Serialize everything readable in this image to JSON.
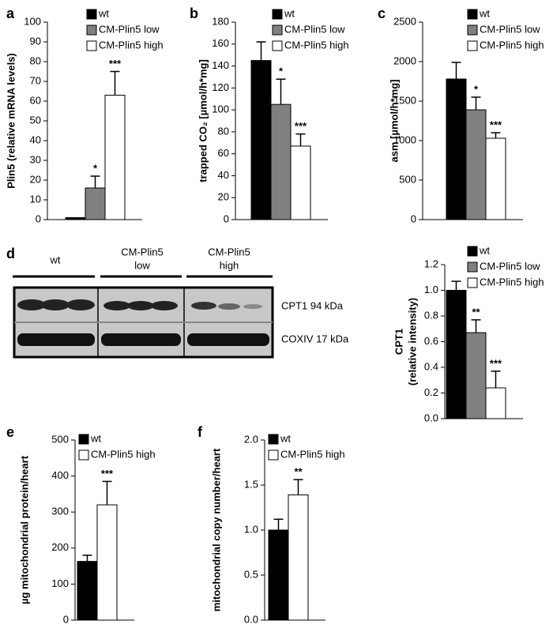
{
  "chart_data": [
    {
      "type": "bar",
      "panel": "a",
      "ylabel": "Plin5 (relative mRNA levels)",
      "ylim": [
        0,
        100
      ],
      "yticks": [
        0,
        10,
        20,
        30,
        40,
        50,
        60,
        70,
        80,
        90,
        100
      ],
      "series": [
        {
          "name": "wt",
          "color": "#000000",
          "values": [
            1
          ],
          "errors": [
            0
          ],
          "sig": [
            null
          ]
        },
        {
          "name": "CM-Plin5 low",
          "color": "#808080",
          "values": [
            16
          ],
          "errors": [
            6
          ],
          "sig": [
            "*"
          ]
        },
        {
          "name": "CM-Plin5 high",
          "color": "#ffffff",
          "values": [
            63
          ],
          "errors": [
            12
          ],
          "sig": [
            "***"
          ]
        }
      ]
    },
    {
      "type": "bar",
      "panel": "b",
      "ylabel": "trapped CO₂ [µmol/h*mg]",
      "ylim": [
        0,
        180
      ],
      "yticks": [
        0,
        20,
        40,
        60,
        80,
        100,
        120,
        140,
        160,
        180
      ],
      "series": [
        {
          "name": "wt",
          "color": "#000000",
          "values": [
            145
          ],
          "errors": [
            17
          ],
          "sig": [
            null
          ]
        },
        {
          "name": "CM-Plin5 low",
          "color": "#808080",
          "values": [
            105
          ],
          "errors": [
            23
          ],
          "sig": [
            "*"
          ]
        },
        {
          "name": "CM-Plin5 high",
          "color": "#ffffff",
          "values": [
            67
          ],
          "errors": [
            11
          ],
          "sig": [
            "***"
          ]
        }
      ]
    },
    {
      "type": "bar",
      "panel": "c",
      "ylabel": "asm [µmol/h*mg]",
      "ylim": [
        0,
        2500
      ],
      "yticks": [
        0,
        500,
        1000,
        1500,
        2000,
        2500
      ],
      "series": [
        {
          "name": "wt",
          "color": "#000000",
          "values": [
            1780
          ],
          "errors": [
            210
          ],
          "sig": [
            null
          ]
        },
        {
          "name": "CM-Plin5 low",
          "color": "#808080",
          "values": [
            1390
          ],
          "errors": [
            160
          ],
          "sig": [
            "*"
          ]
        },
        {
          "name": "CM-Plin5 high",
          "color": "#ffffff",
          "values": [
            1030
          ],
          "errors": [
            70
          ],
          "sig": [
            "***"
          ]
        }
      ]
    },
    {
      "type": "bar",
      "ylabel": [
        "CPT1",
        "(relative intensity)"
      ],
      "ylim": [
        0,
        1.2
      ],
      "yticks": [
        {
          "value": 0,
          "label": "0.0"
        },
        0.2,
        0.4,
        0.6,
        0.8,
        {
          "value": 1,
          "label": "1.0"
        },
        1.2
      ],
      "series": [
        {
          "name": "wt",
          "color": "#000000",
          "values": [
            1.0
          ],
          "errors": [
            0.07
          ],
          "sig": [
            null
          ]
        },
        {
          "name": "CM-Plin5 low",
          "color": "#808080",
          "values": [
            0.67
          ],
          "errors": [
            0.1
          ],
          "sig": [
            "**"
          ]
        },
        {
          "name": "CM-Plin5 high",
          "color": "#ffffff",
          "values": [
            0.24
          ],
          "errors": [
            0.13
          ],
          "sig": [
            "***"
          ]
        }
      ]
    },
    {
      "type": "bar",
      "panel": "e",
      "ylabel": "µg mitochondrial protein/heart",
      "ylim": [
        0,
        500
      ],
      "yticks": [
        0,
        100,
        200,
        300,
        400,
        500
      ],
      "series": [
        {
          "name": "wt",
          "color": "#000000",
          "values": [
            163
          ],
          "errors": [
            17
          ],
          "sig": [
            null
          ]
        },
        {
          "name": "CM-Plin5 high",
          "color": "#ffffff",
          "values": [
            320
          ],
          "errors": [
            65
          ],
          "sig": [
            "***"
          ]
        }
      ]
    },
    {
      "type": "bar",
      "panel": "f",
      "ylabel": "mitochondrial copy number/heart",
      "ylim": [
        0,
        2
      ],
      "yticks": [
        {
          "value": 0,
          "label": "0.0"
        },
        0.5,
        {
          "value": 1,
          "label": "1.0"
        },
        1.5,
        {
          "value": 2,
          "label": "2.0"
        }
      ],
      "series": [
        {
          "name": "wt",
          "color": "#000000",
          "values": [
            1.0
          ],
          "errors": [
            0.12
          ],
          "sig": [
            null
          ]
        },
        {
          "name": "CM-Plin5 high",
          "color": "#ffffff",
          "values": [
            1.39
          ],
          "errors": [
            0.17
          ],
          "sig": [
            "**"
          ]
        }
      ]
    }
  ],
  "blot": {
    "panel": "d",
    "groups": [
      [
        "wt"
      ],
      [
        "CM-Plin5",
        "low"
      ],
      [
        "CM-Plin5",
        "high"
      ]
    ],
    "bands": [
      "CPT1 94 kDa",
      "COXIV 17 kDa"
    ]
  }
}
